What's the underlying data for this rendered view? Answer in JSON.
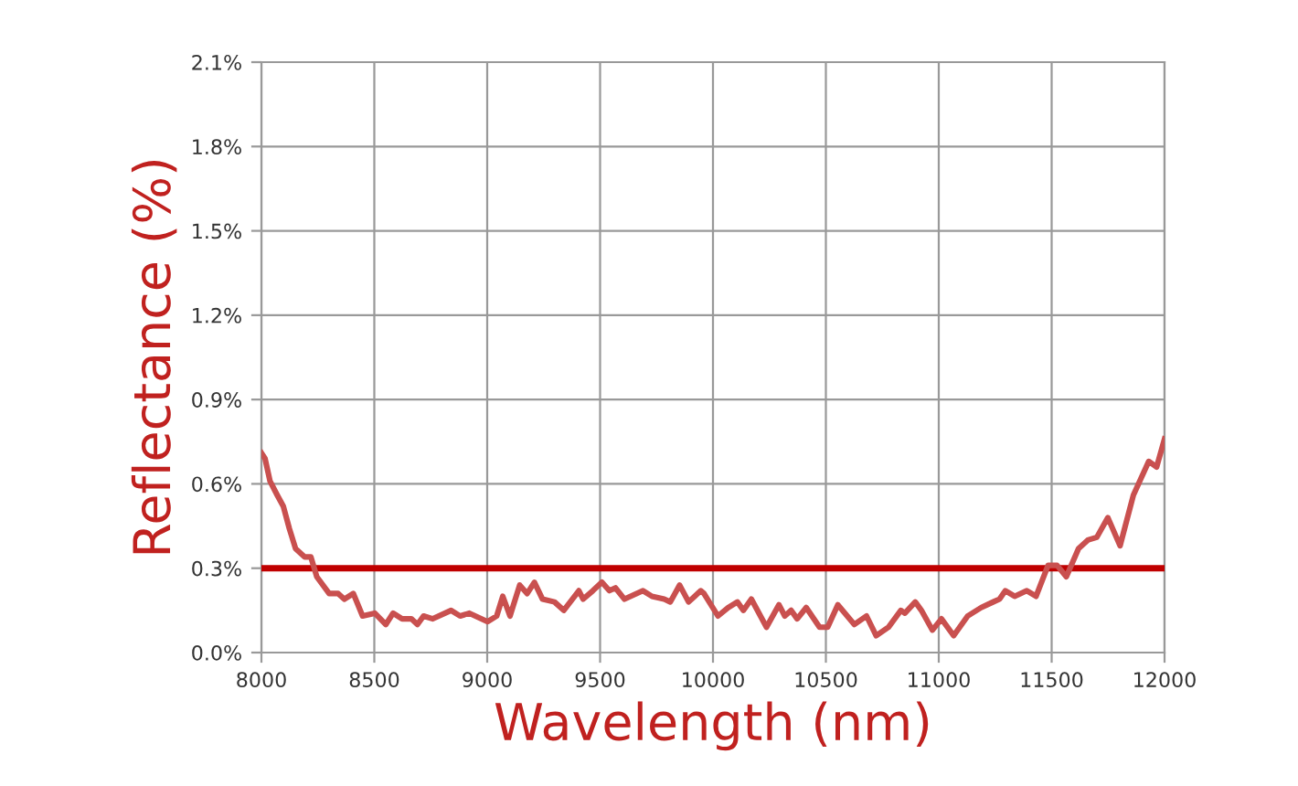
{
  "chart_data": {
    "type": "line",
    "xlabel": "Wavelength (nm)",
    "ylabel": "Reflectance (%)",
    "x": [
      8000,
      8016,
      8038,
      8070,
      8097,
      8124,
      8151,
      8192,
      8219,
      8245,
      8300,
      8340,
      8367,
      8407,
      8448,
      8502,
      8551,
      8583,
      8623,
      8664,
      8691,
      8718,
      8759,
      8840,
      8880,
      8921,
      9002,
      9042,
      9069,
      9101,
      9144,
      9177,
      9209,
      9245,
      9298,
      9339,
      9406,
      9425,
      9468,
      9508,
      9541,
      9568,
      9608,
      9690,
      9730,
      9784,
      9811,
      9852,
      9892,
      9946,
      9960,
      10022,
      10067,
      10108,
      10135,
      10170,
      10237,
      10292,
      10318,
      10346,
      10373,
      10413,
      10472,
      10508,
      10553,
      10626,
      10680,
      10723,
      10777,
      10832,
      10850,
      10896,
      10923,
      10972,
      11012,
      11066,
      11128,
      11188,
      11241,
      11269,
      11295,
      11336,
      11390,
      11431,
      11484,
      11524,
      11565,
      11619,
      11660,
      11700,
      11749,
      11803,
      11862,
      11930,
      11965,
      12000
    ],
    "series": [
      {
        "color": "#c9504f",
        "values": [
          0.71,
          0.69,
          0.61,
          0.56,
          0.52,
          0.44,
          0.37,
          0.34,
          0.34,
          0.27,
          0.21,
          0.21,
          0.19,
          0.21,
          0.13,
          0.14,
          0.1,
          0.14,
          0.12,
          0.12,
          0.1,
          0.13,
          0.12,
          0.15,
          0.13,
          0.14,
          0.11,
          0.13,
          0.2,
          0.13,
          0.24,
          0.21,
          0.25,
          0.19,
          0.18,
          0.15,
          0.22,
          0.19,
          0.22,
          0.25,
          0.22,
          0.23,
          0.19,
          0.22,
          0.2,
          0.19,
          0.18,
          0.24,
          0.18,
          0.22,
          0.21,
          0.13,
          0.16,
          0.18,
          0.15,
          0.19,
          0.09,
          0.17,
          0.13,
          0.15,
          0.12,
          0.16,
          0.09,
          0.09,
          0.17,
          0.1,
          0.13,
          0.06,
          0.09,
          0.15,
          0.14,
          0.18,
          0.15,
          0.08,
          0.12,
          0.06,
          0.13,
          0.16,
          0.18,
          0.19,
          0.22,
          0.2,
          0.22,
          0.2,
          0.31,
          0.31,
          0.27,
          0.37,
          0.4,
          0.41,
          0.48,
          0.38,
          0.56,
          0.68,
          0.66,
          0.76
        ]
      }
    ],
    "xlim": [
      8000,
      12000
    ],
    "xticks": [
      8000,
      8500,
      9000,
      9500,
      10000,
      10500,
      11000,
      11500,
      12000
    ],
    "ylim": [
      0,
      2.1
    ],
    "yticks": [
      {
        "value": 0,
        "label": "0.0%"
      },
      {
        "value": 0.3,
        "label": "0.3%"
      },
      {
        "value": 0.6,
        "label": "0.6%"
      },
      {
        "value": 0.9,
        "label": "0.9%"
      },
      {
        "value": 1.2,
        "label": "1.2%"
      },
      {
        "value": 1.5,
        "label": "1.5%"
      },
      {
        "value": 1.8,
        "label": "1.8%"
      },
      {
        "value": 2.1,
        "label": "2.1%"
      }
    ],
    "ref_lines": [
      {
        "axis": "y",
        "value": 0.3,
        "color": "#c00000"
      }
    ],
    "grid": true,
    "marker": "none",
    "line_style": "solid"
  }
}
